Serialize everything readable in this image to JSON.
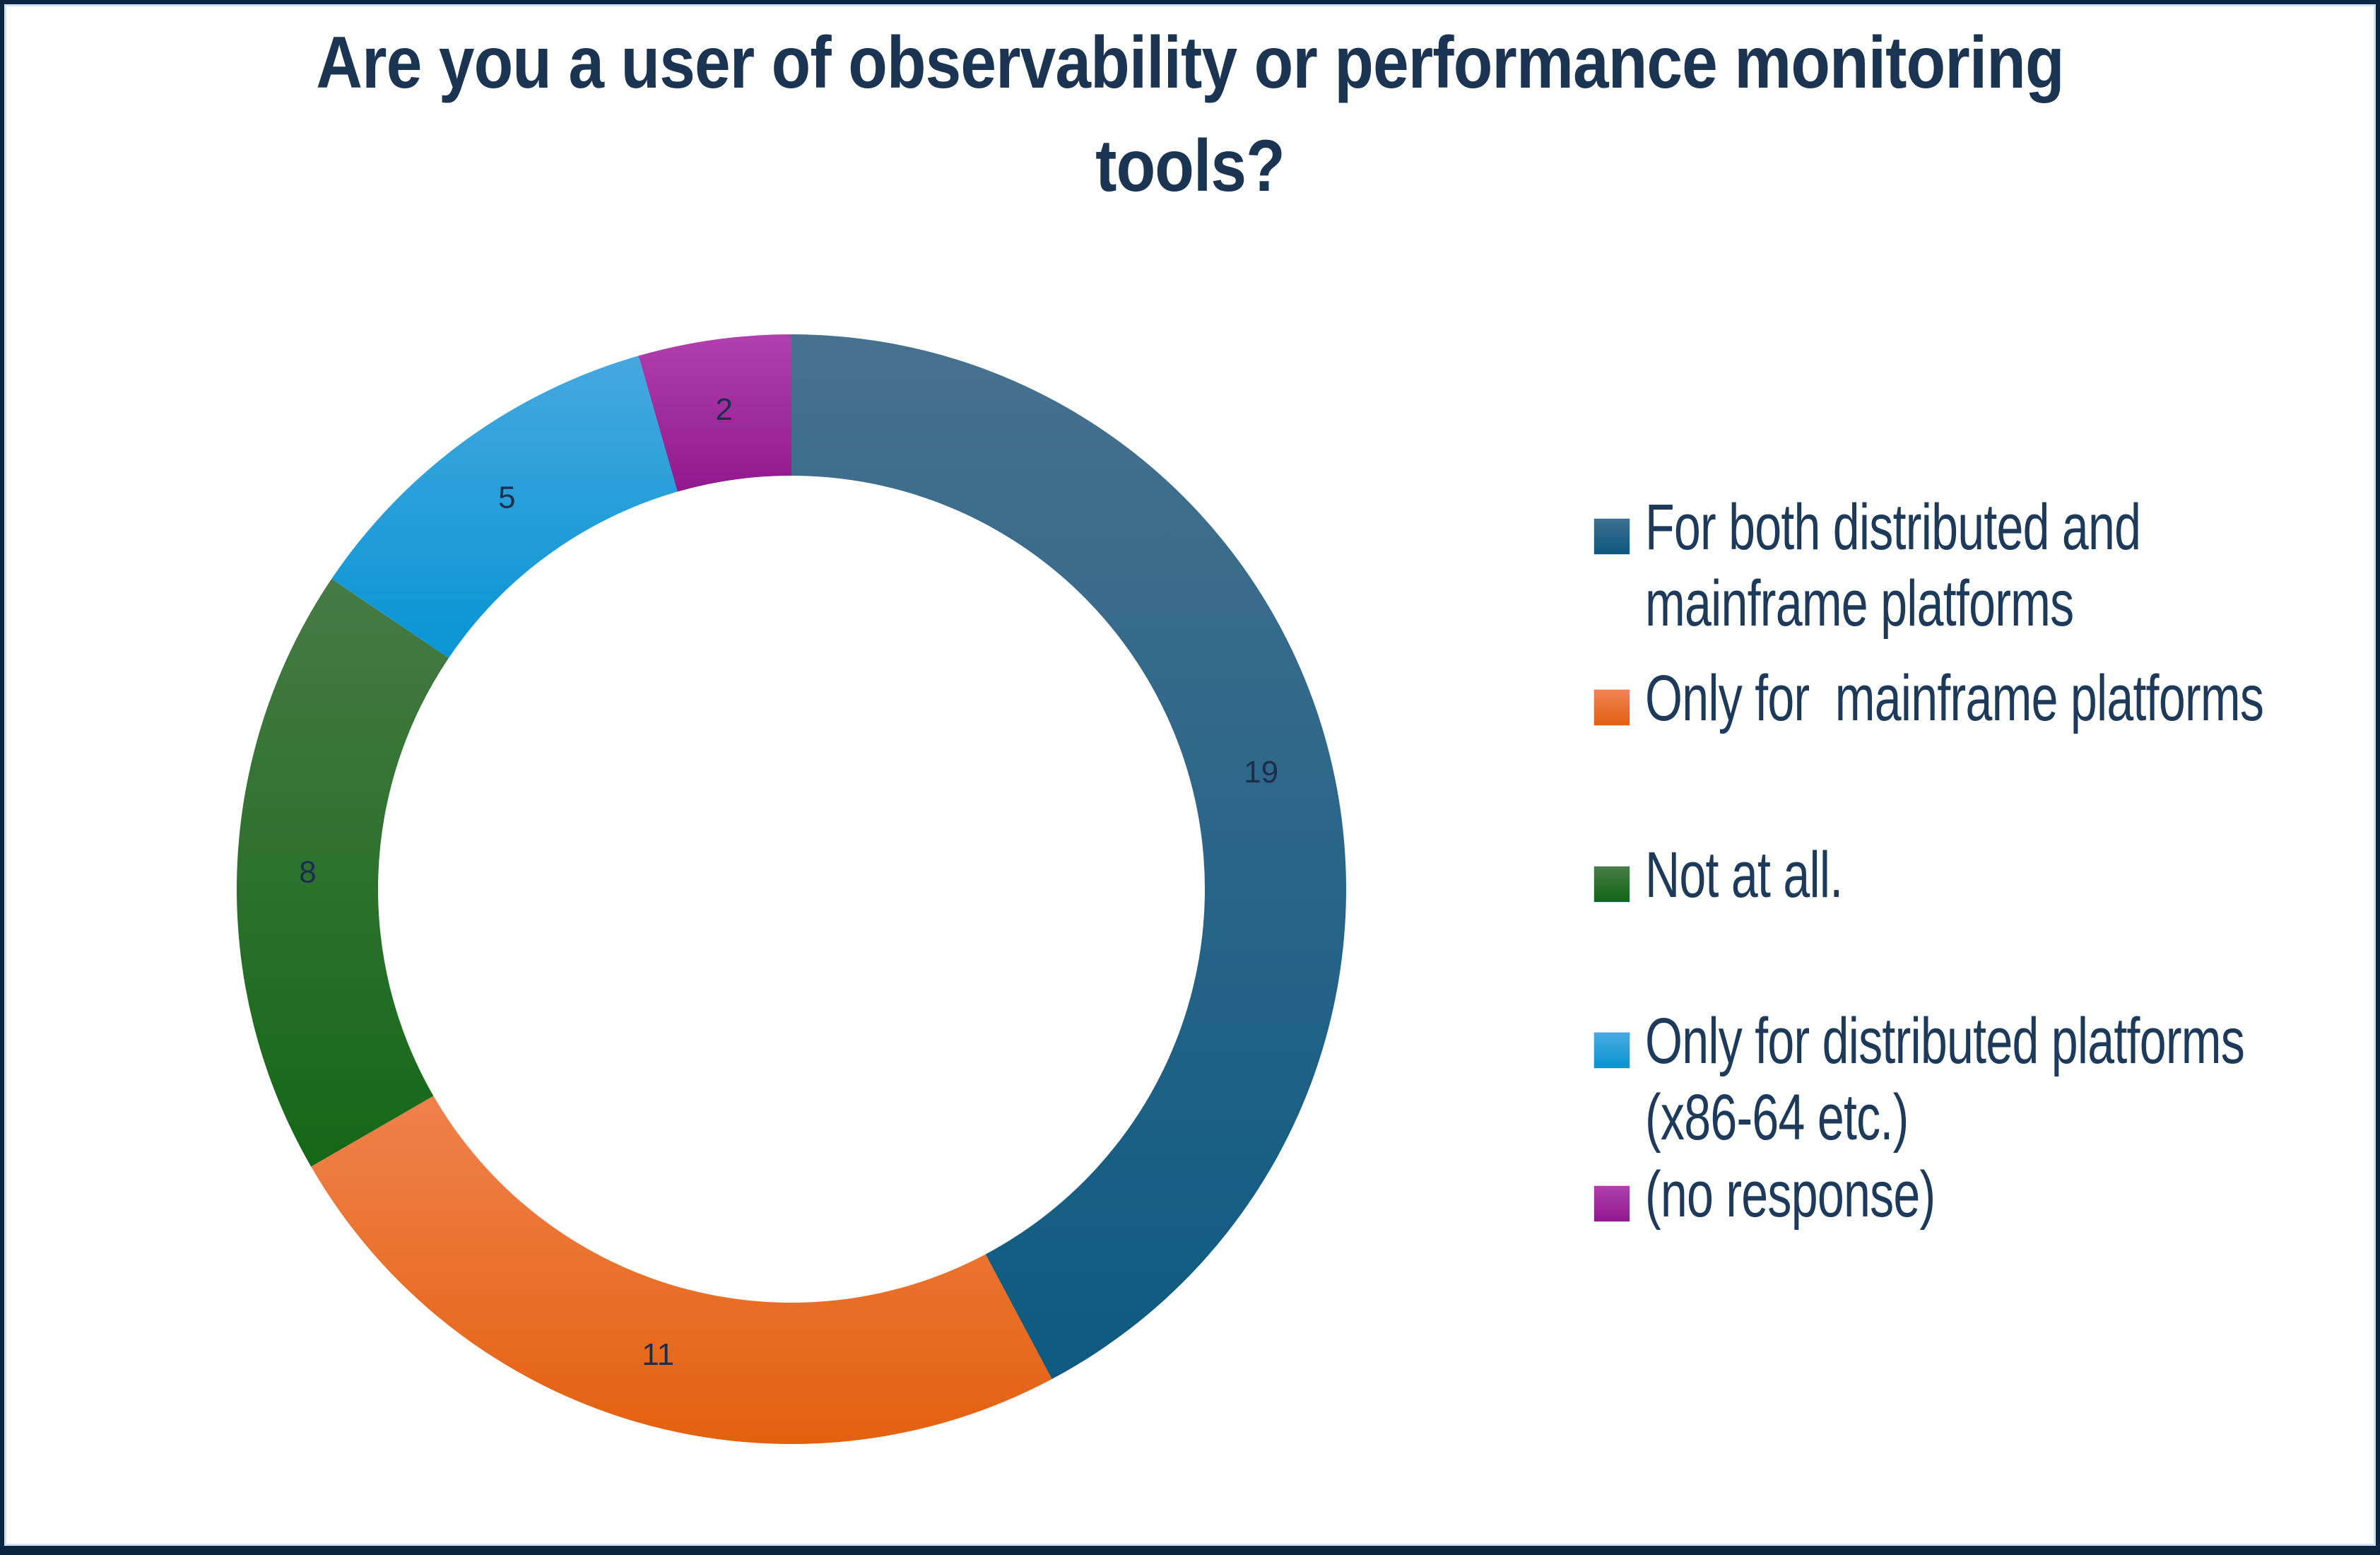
{
  "title": {
    "text": "Are you a user of observability or performance monitoring\ntools?",
    "color": "#1B3452"
  },
  "chart_data": {
    "type": "pie",
    "subtype": "donut",
    "title": "Are you a user of observability or performance monitoring tools?",
    "categories": [
      "For both distributed and mainframe platforms",
      "Only for  mainframe platforms",
      "Not at all.",
      "Only for distributed platforms (x86-64 etc.)",
      "(no response)"
    ],
    "values": [
      19,
      11,
      8,
      5,
      2
    ],
    "total": 45,
    "data_labels_shown": [
      19,
      11,
      8,
      5,
      2
    ],
    "start_angle_deg": 0,
    "direction": "clockwise",
    "legend_position": "right",
    "grid": false,
    "donut_hole_ratio": 0.745,
    "geometry": {
      "outer_radius": 785,
      "inner_radius": 585,
      "label_radius": 685
    },
    "data_label_color": "#1B2F4D",
    "slice_gradients": [
      {
        "from": "#47718F",
        "to": "#0D5A81"
      },
      {
        "from": "#F0814C",
        "to": "#E3610E"
      },
      {
        "from": "#477A45",
        "to": "#136817"
      },
      {
        "from": "#45A8DF",
        "to": "#0895D3"
      },
      {
        "from": "#B13FAC",
        "to": "#8F1A8E"
      }
    ]
  },
  "legend": {
    "text_color": "#1E3A5A",
    "items": [
      {
        "label": "For both distributed and\nmainframe platforms",
        "swatch_from": "#3E6F90",
        "swatch_to": "#0D5880"
      },
      {
        "label": "Only for  mainframe platforms",
        "swatch_from": "#F08355",
        "swatch_to": "#E25F12"
      },
      {
        "label": "Not at all.",
        "swatch_from": "#487B46",
        "swatch_to": "#136617"
      },
      {
        "label": "Only for distributed platforms\n(x86-64 etc.)",
        "swatch_from": "#4AAAE0",
        "swatch_to": "#0894D2"
      },
      {
        "label": "(no response)",
        "swatch_from": "#B13FAC",
        "swatch_to": "#8F1A8E"
      }
    ]
  },
  "frame": {
    "border_color": "#0B2440",
    "inner_line_color": "#D3E3F4",
    "background": "#FFFFFF"
  }
}
